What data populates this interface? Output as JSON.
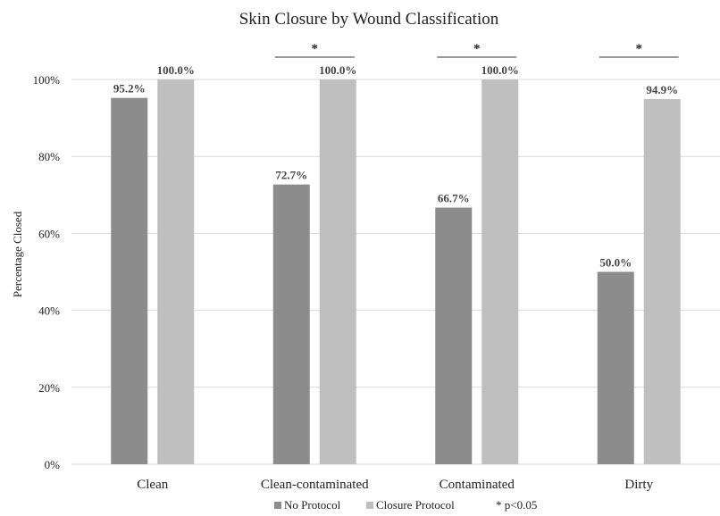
{
  "chart_data": {
    "type": "bar",
    "title": "Skin Closure by Wound Classification",
    "ylabel": "Percentage Closed",
    "xlabel": "",
    "ylim": [
      0,
      100
    ],
    "yticks": [
      0,
      20,
      40,
      60,
      80,
      100
    ],
    "ytick_labels": [
      "0%",
      "20%",
      "40%",
      "60%",
      "80%",
      "100%"
    ],
    "categories": [
      "Clean",
      "Clean-contaminated",
      "Contaminated",
      "Dirty"
    ],
    "series": [
      {
        "name": "No Protocol",
        "values": [
          95.2,
          72.7,
          66.7,
          50.0
        ],
        "labels": [
          "95.2%",
          "72.7%",
          "66.7%",
          "50.0%"
        ],
        "color": "#8c8c8c"
      },
      {
        "name": "Closure Protocol",
        "values": [
          100.0,
          100.0,
          100.0,
          94.9
        ],
        "labels": [
          "100.0%",
          "100.0%",
          "100.0%",
          "94.9%"
        ],
        "color": "#bfbfbf"
      }
    ],
    "significant": [
      false,
      true,
      true,
      true
    ],
    "significance_marker": "*",
    "legend_note": "* p<0.05",
    "grid": true,
    "legend_position": "bottom"
  }
}
